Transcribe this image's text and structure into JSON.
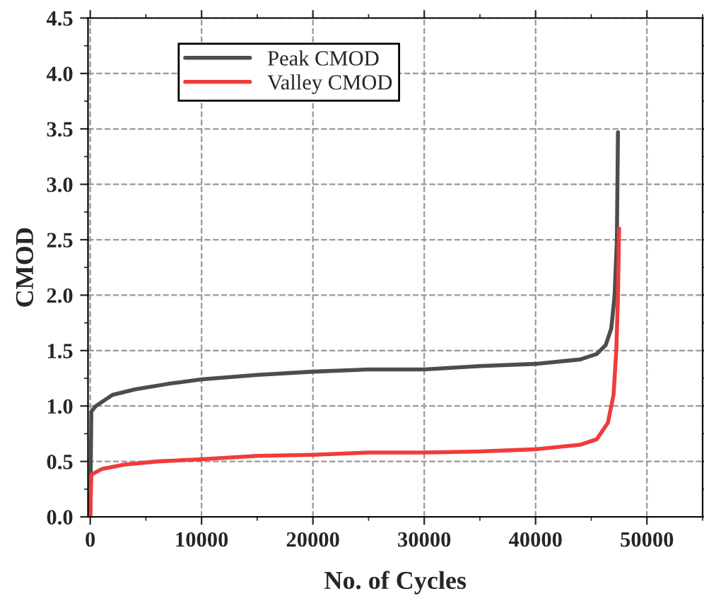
{
  "chart_data": {
    "type": "line",
    "xlabel": "No. of Cycles",
    "ylabel": "CMOD",
    "xlim": [
      -200,
      55000
    ],
    "xticks": [
      0,
      10000,
      20000,
      30000,
      40000,
      50000
    ],
    "ylim": [
      0,
      4.5
    ],
    "yticks": [
      {
        "value": 0,
        "label": "0.0"
      },
      {
        "value": 0.5,
        "label": "0.5"
      },
      {
        "value": 1,
        "label": "1.0"
      },
      {
        "value": 1.5,
        "label": "1.5"
      },
      {
        "value": 2,
        "label": "2.0"
      },
      {
        "value": 2.5,
        "label": "2.5"
      },
      {
        "value": 3,
        "label": "3.0"
      },
      {
        "value": 3.5,
        "label": "3.5"
      },
      {
        "value": 4,
        "label": "4.0"
      },
      {
        "value": 4.5,
        "label": "4.5"
      }
    ],
    "grid": true,
    "legend": "top left",
    "line_style": "solid",
    "marker": "none",
    "series": [
      {
        "name": "Peak CMOD",
        "color": "#4d4d4d",
        "x": [
          0,
          100,
          500,
          2000,
          4000,
          7000,
          10000,
          15000,
          20000,
          25000,
          30000,
          35000,
          40000,
          44000,
          45500,
          46300,
          46800,
          47100,
          47300,
          47400
        ],
        "values": [
          0,
          0.95,
          1.0,
          1.1,
          1.15,
          1.2,
          1.24,
          1.28,
          1.31,
          1.33,
          1.33,
          1.36,
          1.38,
          1.42,
          1.47,
          1.55,
          1.7,
          2.0,
          2.5,
          3.47
        ]
      },
      {
        "name": "Valley CMOD",
        "color": "#f03c3c",
        "x": [
          0,
          100,
          1000,
          3000,
          6000,
          10000,
          15000,
          20000,
          25000,
          30000,
          35000,
          40000,
          44000,
          45500,
          46500,
          47000,
          47250,
          47400,
          47500
        ],
        "values": [
          0,
          0.38,
          0.43,
          0.47,
          0.5,
          0.52,
          0.55,
          0.56,
          0.58,
          0.58,
          0.59,
          0.61,
          0.65,
          0.7,
          0.85,
          1.1,
          1.5,
          2.0,
          2.6
        ]
      }
    ]
  }
}
